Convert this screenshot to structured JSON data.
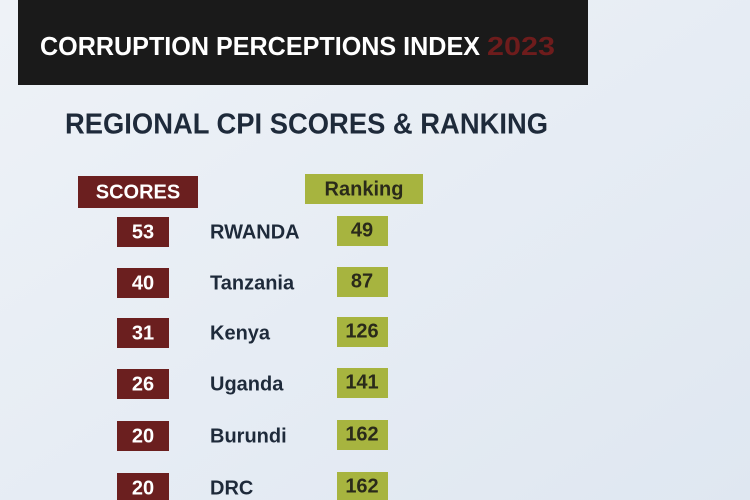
{
  "header": {
    "title": "CORRUPTION PERCEPTIONS INDEX",
    "year": "2023"
  },
  "subtitle": "REGIONAL CPI SCORES & RANKING",
  "table": {
    "columns": [
      "SCORES",
      "Ranking"
    ],
    "rows": [
      [
        "53",
        "RWANDA",
        "49"
      ],
      [
        "40",
        "Tanzania",
        "87"
      ],
      [
        "31",
        "Kenya",
        "126"
      ],
      [
        "26",
        "Uganda",
        "141"
      ],
      [
        "20",
        "Burundi",
        "162"
      ],
      [
        "20",
        "DRC",
        "162"
      ]
    ]
  }
}
